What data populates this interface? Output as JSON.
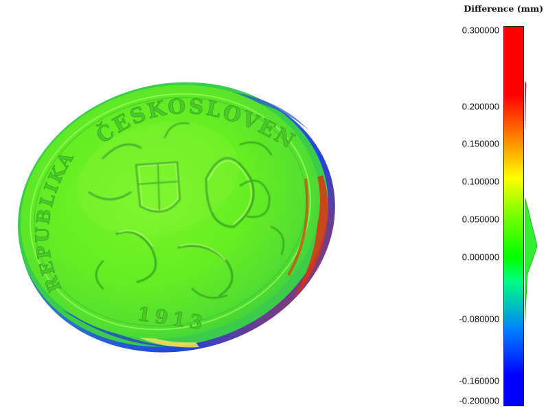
{
  "legend": {
    "title": "Difference (mm)",
    "ticks": [
      {
        "value": 0.3,
        "label": "0.300000"
      },
      {
        "value": 0.2,
        "label": "0.200000"
      },
      {
        "value": 0.15,
        "label": "0.150000"
      },
      {
        "value": 0.1,
        "label": "0.100000"
      },
      {
        "value": 0.05,
        "label": "0.050000"
      },
      {
        "value": 0.0,
        "label": "0.000000"
      },
      {
        "value": -0.08,
        "label": "-0.080000"
      },
      {
        "value": -0.16,
        "label": "-0.160000"
      },
      {
        "value": -0.2,
        "label": "-0.200000"
      }
    ],
    "colors": {
      "max": "#ff0000",
      "high": "#ff8000",
      "mid_high": "#ffff00",
      "zero": "#00ff00",
      "low": "#0080ff",
      "min": "#0000ff"
    }
  },
  "viewport": {
    "surface_color": "#66ee22",
    "rim_colors": [
      "#2244dd",
      "#dd2200",
      "#44ff88"
    ],
    "coin_text": {
      "top": "ČESKOSLOVENSKÁ",
      "left": "REPUBLIKA",
      "year": "1913"
    }
  }
}
